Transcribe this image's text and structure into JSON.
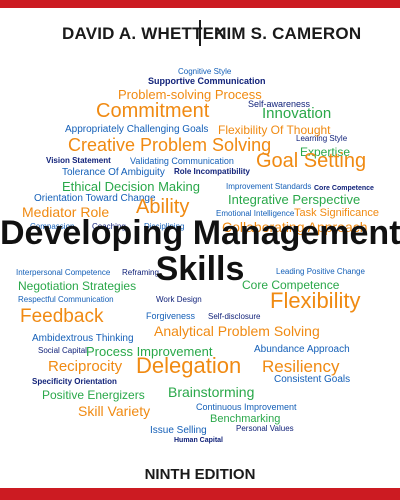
{
  "authors": {
    "first": "DAVID A. WHETTEN",
    "second": "KIM S. CAMERON"
  },
  "title": {
    "line1": "Developing Management",
    "line2": "Skills"
  },
  "edition": "NINTH EDITION",
  "colors": {
    "orange": "#f08a12",
    "blue": "#1560b8",
    "green": "#2aa84a",
    "navy": "#12237a",
    "dark": "#1a1a1a",
    "red": "#cc1b22"
  },
  "words": [
    {
      "t": "Cognitive Style",
      "c": "blue"
    },
    {
      "t": "Supportive Communication",
      "c": "navy"
    },
    {
      "t": "Problem-solving Process",
      "c": "orange"
    },
    {
      "t": "Commitment",
      "c": "orange"
    },
    {
      "t": "Self-awareness",
      "c": "navy"
    },
    {
      "t": "Innovation",
      "c": "green"
    },
    {
      "t": "Appropriately Challenging Goals",
      "c": "blue"
    },
    {
      "t": "Flexibility Of Thought",
      "c": "orange"
    },
    {
      "t": "Learning Style",
      "c": "navy"
    },
    {
      "t": "Creative Problem Solving",
      "c": "orange"
    },
    {
      "t": "Expertise",
      "c": "green"
    },
    {
      "t": "Vision Statement",
      "c": "navy"
    },
    {
      "t": "Validating Communication",
      "c": "blue"
    },
    {
      "t": "Goal Setting",
      "c": "orange"
    },
    {
      "t": "Tolerance Of Ambiguity",
      "c": "blue"
    },
    {
      "t": "Role Incompatibility",
      "c": "navy"
    },
    {
      "t": "Ethical Decision Making",
      "c": "green"
    },
    {
      "t": "Improvement Standards",
      "c": "blue"
    },
    {
      "t": "Core Competence",
      "c": "navy"
    },
    {
      "t": "Orientation Toward Change",
      "c": "blue"
    },
    {
      "t": "Integrative Perspective",
      "c": "green"
    },
    {
      "t": "Mediator Role",
      "c": "orange"
    },
    {
      "t": "Ability",
      "c": "orange"
    },
    {
      "t": "Emotional Intelligence",
      "c": "blue"
    },
    {
      "t": "Task Significance",
      "c": "orange"
    },
    {
      "t": "Compassion",
      "c": "blue"
    },
    {
      "t": "Coaching",
      "c": "navy"
    },
    {
      "t": "Disciplining",
      "c": "blue"
    },
    {
      "t": "Collaborating Approach",
      "c": "orange"
    },
    {
      "t": "Interpersonal Competence",
      "c": "blue"
    },
    {
      "t": "Reframing",
      "c": "navy"
    },
    {
      "t": "Leading Positive Change",
      "c": "blue"
    },
    {
      "t": "Negotiation Strategies",
      "c": "green"
    },
    {
      "t": "Core Competence",
      "c": "green"
    },
    {
      "t": "Respectful Communication",
      "c": "blue"
    },
    {
      "t": "Work Design",
      "c": "navy"
    },
    {
      "t": "Flexibility",
      "c": "orange"
    },
    {
      "t": "Feedback",
      "c": "orange"
    },
    {
      "t": "Forgiveness",
      "c": "blue"
    },
    {
      "t": "Self-disclosure",
      "c": "navy"
    },
    {
      "t": "Analytical Problem Solving",
      "c": "orange"
    },
    {
      "t": "Ambidextrous Thinking",
      "c": "blue"
    },
    {
      "t": "Social Capital",
      "c": "navy"
    },
    {
      "t": "Process Improvement",
      "c": "green"
    },
    {
      "t": "Abundance Approach",
      "c": "blue"
    },
    {
      "t": "Reciprocity",
      "c": "orange"
    },
    {
      "t": "Delegation",
      "c": "orange"
    },
    {
      "t": "Resiliency",
      "c": "orange"
    },
    {
      "t": "Specificity Orientation",
      "c": "navy"
    },
    {
      "t": "Consistent Goals",
      "c": "blue"
    },
    {
      "t": "Positive Energizers",
      "c": "green"
    },
    {
      "t": "Brainstorming",
      "c": "green"
    },
    {
      "t": "Skill Variety",
      "c": "orange"
    },
    {
      "t": "Continuous Improvement",
      "c": "blue"
    },
    {
      "t": "Benchmarking",
      "c": "green"
    },
    {
      "t": "Issue Selling",
      "c": "blue"
    },
    {
      "t": "Personal Values",
      "c": "navy"
    },
    {
      "t": "Human Capital",
      "c": "navy"
    }
  ]
}
